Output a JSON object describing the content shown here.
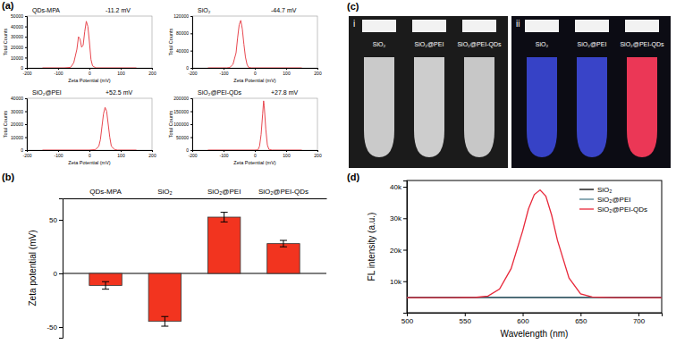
{
  "panel_labels": [
    "(a)",
    "(b)",
    "(c)",
    "(d)"
  ],
  "chart_data": [
    {
      "type": "line",
      "title": "QDs-MPA",
      "annotations": [
        "-11.2 mV"
      ],
      "x_label": "Zeta Potential (mV)",
      "y_label": "Total Counts",
      "x": [
        -150,
        -80,
        -60,
        -50,
        -40,
        -35,
        -30,
        -25,
        -20,
        -15,
        -10,
        -5,
        0,
        5,
        10,
        20,
        40,
        150
      ],
      "values": [
        0,
        0,
        500,
        5000,
        18000,
        30000,
        28000,
        20000,
        22000,
        35000,
        45000,
        40000,
        25000,
        8000,
        2000,
        0,
        0,
        0
      ],
      "color": "#e8474f",
      "xlim": [
        -200,
        200
      ],
      "xticks": [
        -200,
        -100,
        0,
        100,
        200
      ],
      "ylim": [
        0,
        50000
      ],
      "yticks": [
        0,
        10000,
        20000,
        30000,
        40000,
        50000
      ]
    },
    {
      "type": "line",
      "title": "SiO₂",
      "annotations": [
        "-44.7 mV"
      ],
      "x_label": "Zeta Potential (mV)",
      "y_label": "Total Counts",
      "x": [
        -150,
        -90,
        -80,
        -70,
        -60,
        -55,
        -50,
        -45,
        -40,
        -35,
        -30,
        -25,
        -20,
        -10,
        150
      ],
      "values": [
        0,
        0,
        1000,
        8000,
        35000,
        70000,
        100000,
        110000,
        90000,
        55000,
        25000,
        8000,
        1000,
        0,
        0
      ],
      "color": "#e8474f",
      "xlim": [
        -200,
        200
      ],
      "xticks": [
        -200,
        -100,
        0,
        100,
        200
      ],
      "ylim": [
        0,
        120000
      ],
      "yticks": [
        0,
        40000,
        80000,
        120000
      ]
    },
    {
      "type": "line",
      "title": "SiO₂@PEI",
      "annotations": [
        "+52.5 mV"
      ],
      "x_label": "Zeta Potential (mV)",
      "y_label": "Total Counts",
      "x": [
        -150,
        0,
        20,
        30,
        35,
        40,
        45,
        50,
        55,
        60,
        65,
        70,
        80,
        90,
        150
      ],
      "values": [
        0,
        0,
        500,
        3000,
        8000,
        18000,
        28000,
        33000,
        30000,
        20000,
        10000,
        3000,
        500,
        0,
        0
      ],
      "color": "#e8474f",
      "xlim": [
        -200,
        200
      ],
      "xticks": [
        -200,
        -100,
        0,
        100,
        200
      ],
      "ylim": [
        0,
        40000
      ],
      "yticks": [
        0,
        10000,
        20000,
        30000,
        40000
      ]
    },
    {
      "type": "line",
      "title": "SiO₂@PEI-QDs",
      "annotations": [
        "+27.8 mV"
      ],
      "x_label": "Zeta Potential (mV)",
      "y_label": "Total Counts",
      "x": [
        -150,
        0,
        10,
        15,
        20,
        25,
        28,
        30,
        35,
        40,
        45,
        55,
        150
      ],
      "values": [
        0,
        0,
        1000,
        15000,
        60000,
        140000,
        190000,
        170000,
        80000,
        20000,
        3000,
        0,
        0
      ],
      "color": "#e8474f",
      "xlim": [
        -200,
        200
      ],
      "xticks": [
        -200,
        -100,
        0,
        100,
        200
      ],
      "ylim": [
        0,
        200000
      ],
      "yticks": [
        0,
        50000,
        100000,
        150000,
        200000
      ]
    },
    {
      "type": "bar",
      "y_label": "Zeta potential (mV)",
      "categories": [
        "QDs-MPA",
        "SiO₂",
        "SiO₂@PEI",
        "SiO₂@PEI-QDs"
      ],
      "values": [
        -11.2,
        -44.7,
        52.5,
        27.8
      ],
      "errors": [
        3.5,
        4.5,
        4.5,
        3
      ],
      "color": "#f2341f",
      "ylim": [
        -60,
        70
      ],
      "yticks": [
        -50,
        0,
        50
      ]
    },
    {
      "type": "line",
      "x_label": "Wavelength (nm)",
      "y_label": "FL intensity (a.u.)",
      "x": [
        500,
        520,
        540,
        560,
        570,
        580,
        590,
        600,
        605,
        610,
        615,
        620,
        625,
        630,
        640,
        650,
        660,
        680,
        700,
        720
      ],
      "series": [
        {
          "name": "SiO₂",
          "color": "#000000",
          "values": [
            4900,
            4900,
            4900,
            4900,
            4900,
            4900,
            4900,
            4900,
            4900,
            4900,
            4900,
            4900,
            4900,
            4900,
            4900,
            4900,
            4900,
            4900,
            4900,
            4900
          ]
        },
        {
          "name": "SiO₂@PEI",
          "color": "#4f7f8f",
          "values": [
            4850,
            4850,
            4850,
            4850,
            4850,
            4850,
            4850,
            4850,
            4850,
            4850,
            4850,
            4850,
            4850,
            4850,
            4850,
            4850,
            4850,
            4850,
            4850,
            4850
          ]
        },
        {
          "name": "SiO₂@PEI-QDs",
          "color": "#e8283a",
          "values": [
            4800,
            4800,
            4800,
            4900,
            5300,
            7500,
            14000,
            26000,
            33000,
            37500,
            39000,
            37000,
            31000,
            23000,
            11000,
            6000,
            5000,
            4800,
            4800,
            4800
          ]
        }
      ],
      "xlim": [
        500,
        720
      ],
      "xticks": [
        500,
        550,
        600,
        650,
        700
      ],
      "ylim": [
        0,
        42000
      ],
      "yticks": [
        {
          "value": 10000,
          "label": "10k"
        },
        {
          "value": 20000,
          "label": "20k"
        },
        {
          "value": 30000,
          "label": "30k"
        },
        {
          "value": 40000,
          "label": "40k"
        }
      ],
      "legend": "upper right"
    }
  ],
  "photos": [
    {
      "label": "i",
      "tubes": [
        "SiO₂",
        "SiO₂@PEI",
        "SiO₂@PEI-QDs"
      ]
    },
    {
      "label": "ii",
      "tubes": [
        "SiO₂",
        "SiO₂@PEI",
        "SiO₂@PEI-QDs"
      ]
    }
  ]
}
